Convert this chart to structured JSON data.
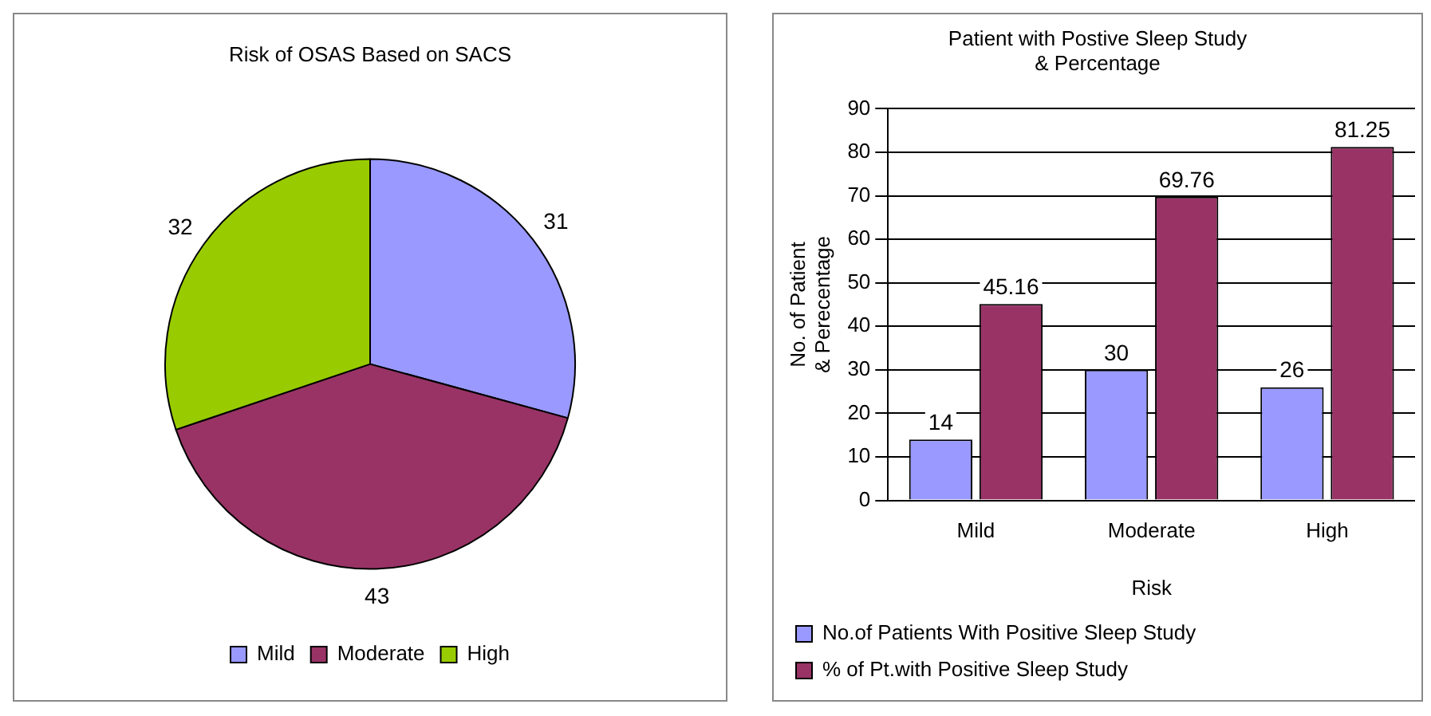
{
  "chart_data": [
    {
      "type": "pie",
      "title": "Risk of OSAS Based on SACS",
      "categories": [
        "Mild",
        "Moderate",
        "High"
      ],
      "values": [
        31,
        43,
        32
      ],
      "colors": [
        "#9999ff",
        "#993366",
        "#99cc00"
      ],
      "data_labels": true,
      "legend": "bottom"
    },
    {
      "type": "bar",
      "title": "Patient with Postive Sleep Study & Percentage",
      "xlabel": "Risk",
      "ylabel": "No. of Patient & Perecentage",
      "categories": [
        "Mild",
        "Moderate",
        "High"
      ],
      "series": [
        {
          "name": "No.of Patients With Positive Sleep Study",
          "color": "#9999ff",
          "values": [
            14,
            30,
            26
          ]
        },
        {
          "name": "% of Pt.with Positive Sleep Study",
          "color": "#993366",
          "values": [
            45.16,
            69.76,
            81.25
          ]
        }
      ],
      "ylim": [
        0,
        90
      ],
      "yticks": [
        0,
        10,
        20,
        30,
        40,
        50,
        60,
        70,
        80,
        90
      ],
      "grid": "y",
      "data_labels": true,
      "legend": "bottom"
    }
  ]
}
